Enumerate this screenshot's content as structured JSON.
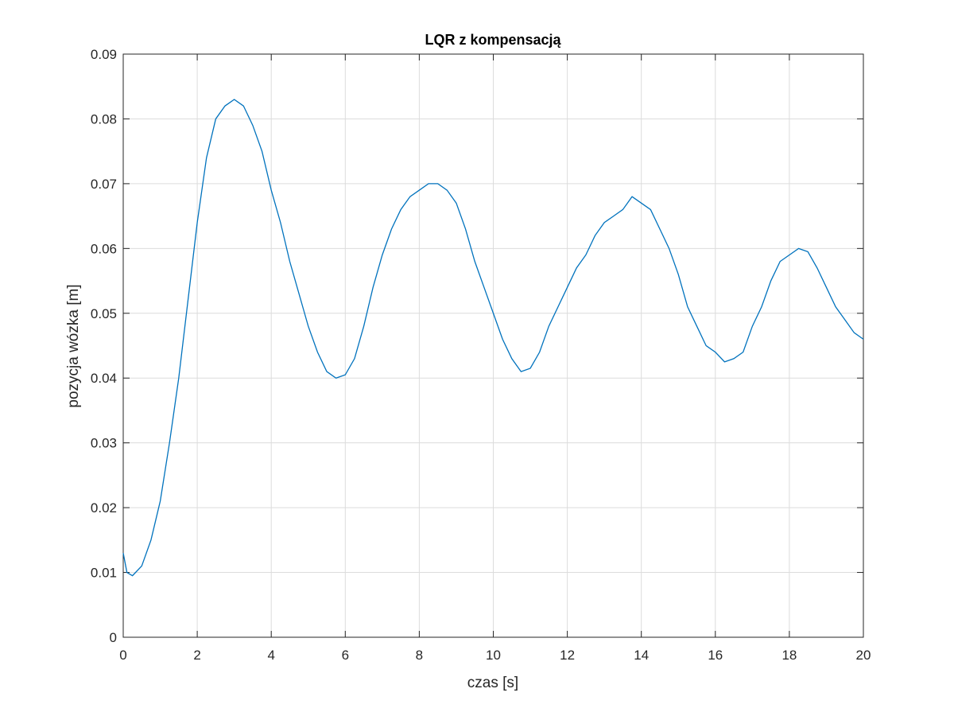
{
  "chart_data": {
    "type": "line",
    "title": "LQR z kompensacją",
    "xlabel": "czas [s]",
    "ylabel": "pozycja wózka [m]",
    "x": [
      0,
      0.1,
      0.25,
      0.5,
      0.75,
      1.0,
      1.25,
      1.5,
      1.75,
      2.0,
      2.25,
      2.5,
      2.75,
      3.0,
      3.25,
      3.5,
      3.75,
      4.0,
      4.25,
      4.5,
      4.75,
      5.0,
      5.25,
      5.5,
      5.75,
      6.0,
      6.25,
      6.5,
      6.75,
      7.0,
      7.25,
      7.5,
      7.75,
      8.0,
      8.25,
      8.5,
      8.75,
      9.0,
      9.25,
      9.5,
      9.75,
      10.0,
      10.25,
      10.5,
      10.75,
      11.0,
      11.25,
      11.5,
      11.75,
      12.0,
      12.25,
      12.5,
      12.75,
      13.0,
      13.25,
      13.5,
      13.75,
      14.0,
      14.25,
      14.5,
      14.75,
      15.0,
      15.25,
      15.5,
      15.75,
      16.0,
      16.25,
      16.5,
      16.75,
      17.0,
      17.25,
      17.5,
      17.75,
      18.0,
      18.25,
      18.5,
      18.75,
      19.0,
      19.25,
      19.5,
      19.75,
      20.0
    ],
    "series": [
      {
        "color": "#0072bd",
        "values": [
          0.013,
          0.01,
          0.0095,
          0.011,
          0.015,
          0.021,
          0.03,
          0.04,
          0.052,
          0.064,
          0.074,
          0.08,
          0.082,
          0.083,
          0.082,
          0.079,
          0.075,
          0.069,
          0.064,
          0.058,
          0.053,
          0.048,
          0.044,
          0.041,
          0.04,
          0.0405,
          0.043,
          0.048,
          0.054,
          0.059,
          0.063,
          0.066,
          0.068,
          0.069,
          0.07,
          0.07,
          0.069,
          0.067,
          0.063,
          0.058,
          0.054,
          0.05,
          0.046,
          0.043,
          0.041,
          0.0415,
          0.044,
          0.048,
          0.051,
          0.054,
          0.057,
          0.059,
          0.062,
          0.064,
          0.065,
          0.066,
          0.068,
          0.067,
          0.066,
          0.063,
          0.06,
          0.056,
          0.051,
          0.048,
          0.045,
          0.044,
          0.0425,
          0.043,
          0.044,
          0.048,
          0.051,
          0.055,
          0.058,
          0.059,
          0.06,
          0.0595,
          0.057,
          0.054,
          0.051,
          0.049,
          0.047,
          0.046
        ]
      }
    ],
    "xlim": [
      0,
      20
    ],
    "xticks": [
      0,
      2,
      4,
      6,
      8,
      10,
      12,
      14,
      16,
      18,
      20
    ],
    "ylim": [
      0,
      0.09
    ],
    "yticks": [
      0,
      0.01,
      0.02,
      0.03,
      0.04,
      0.05,
      0.06,
      0.07,
      0.08,
      0.09
    ],
    "grid": true
  }
}
